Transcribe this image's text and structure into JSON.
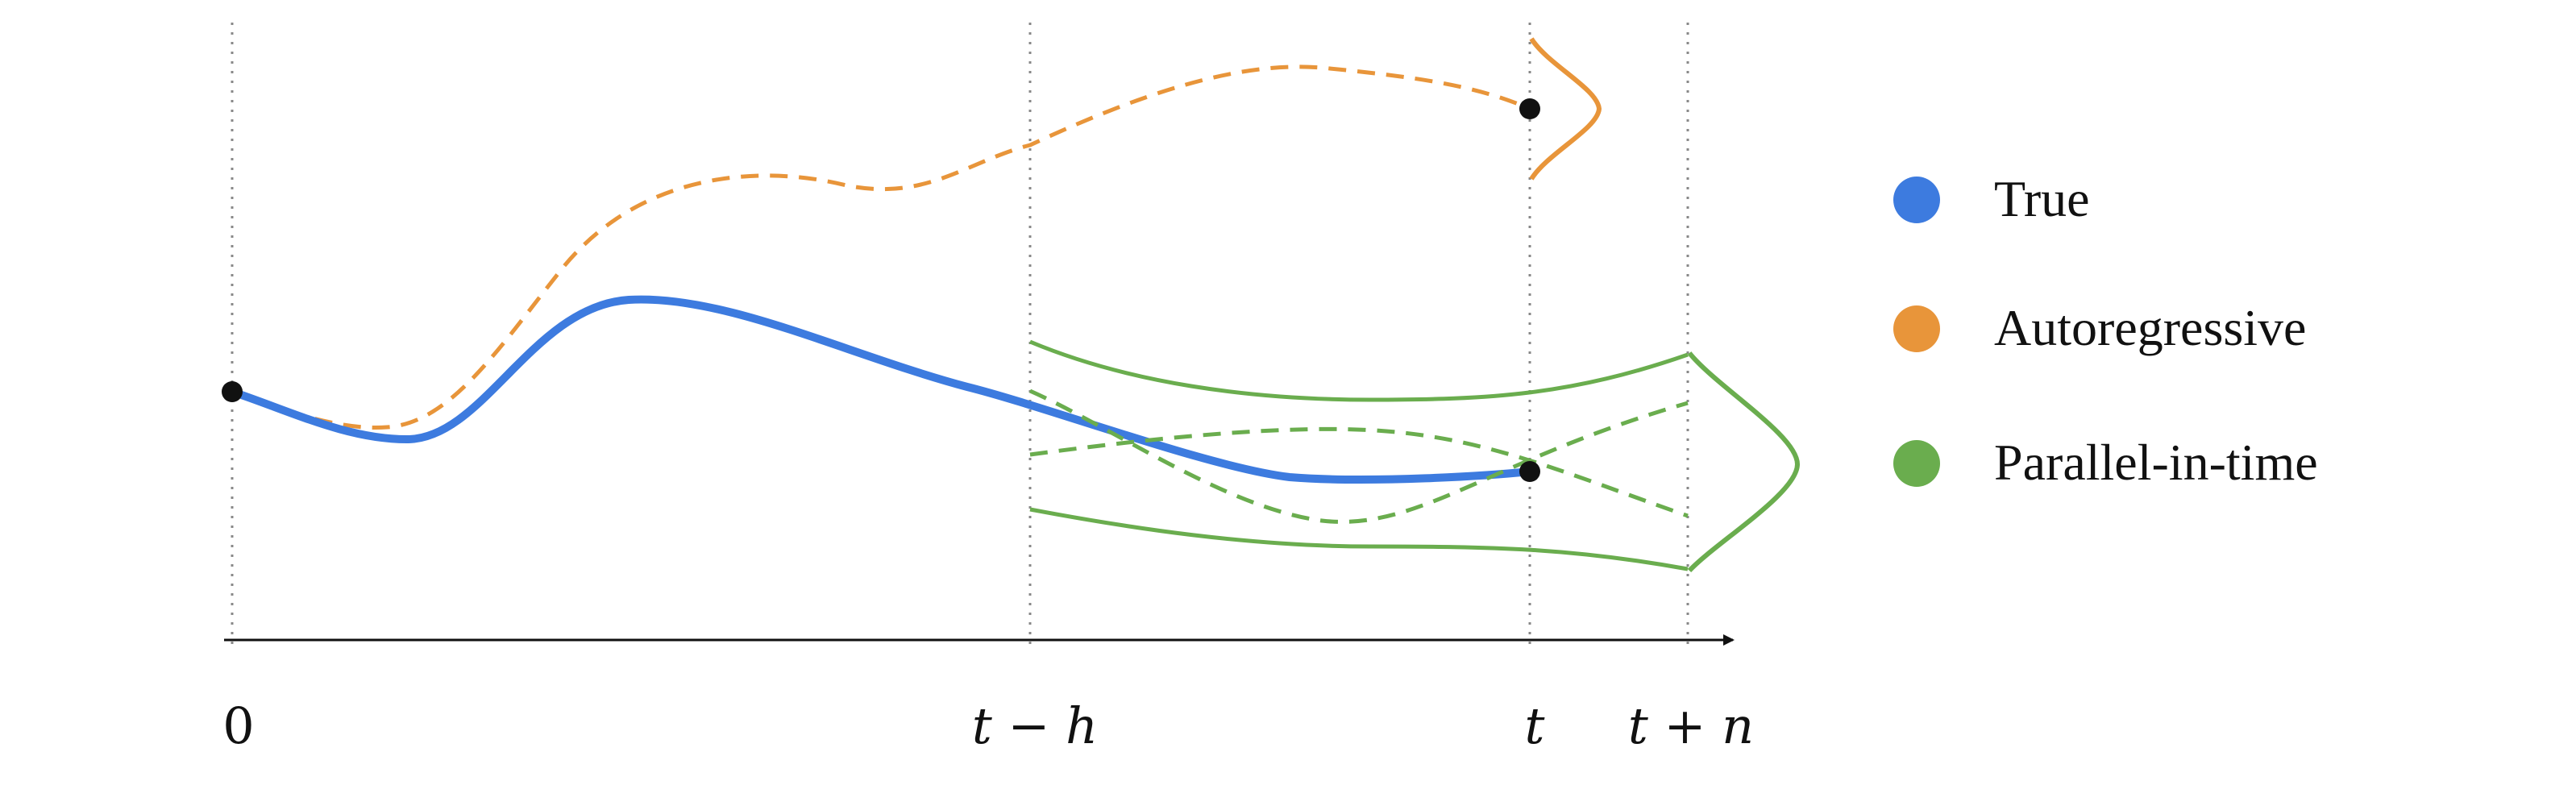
{
  "timeline": {
    "ticks": [
      {
        "id": "zero",
        "label": "0"
      },
      {
        "id": "t-minus-h",
        "label": "t − h"
      },
      {
        "id": "t",
        "label": "t"
      },
      {
        "id": "t-plus-n",
        "label": "t + n"
      }
    ]
  },
  "legend": {
    "items": [
      {
        "id": "true",
        "label": "True",
        "color": "#3d7bdf"
      },
      {
        "id": "autoregressive",
        "label": "Autoregressive",
        "color": "#e8953a"
      },
      {
        "id": "parallel",
        "label": "Parallel-in-time",
        "color": "#6aad4e"
      }
    ]
  },
  "colors": {
    "true": "#3d7bdf",
    "autoregressive": "#e8953a",
    "parallel": "#6aad4e",
    "axis": "#111111",
    "guide": "#888888",
    "point": "#111111"
  }
}
